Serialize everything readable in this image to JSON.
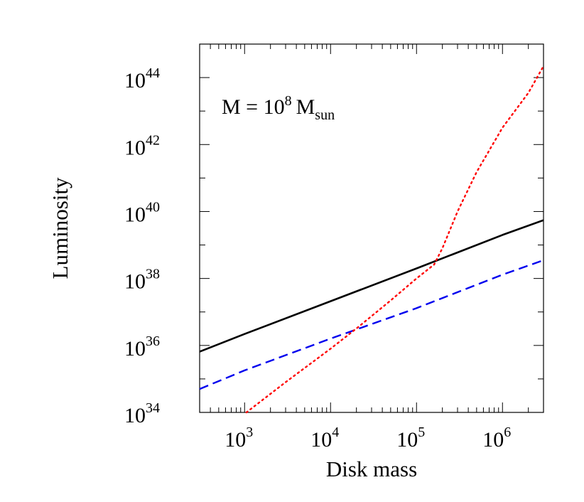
{
  "chart_data": {
    "type": "line",
    "title": "",
    "xlabel": "Disk mass",
    "ylabel": "Luminosity",
    "x_scale": "log",
    "y_scale": "log",
    "xlim": [
      300,
      3000000
    ],
    "ylim": [
      1e+34,
      1e+45
    ],
    "x_ticks": [
      {
        "base": "10",
        "exp": "3",
        "value": 1000
      },
      {
        "base": "10",
        "exp": "4",
        "value": 10000
      },
      {
        "base": "10",
        "exp": "5",
        "value": 100000
      },
      {
        "base": "10",
        "exp": "6",
        "value": 1000000
      }
    ],
    "y_ticks": [
      {
        "base": "10",
        "exp": "34",
        "value": 1e+34
      },
      {
        "base": "10",
        "exp": "36",
        "value": 1e+36
      },
      {
        "base": "10",
        "exp": "38",
        "value": 1e+38
      },
      {
        "base": "10",
        "exp": "40",
        "value": 1e+40
      },
      {
        "base": "10",
        "exp": "42",
        "value": 1e+42
      },
      {
        "base": "10",
        "exp": "44",
        "value": 1e+44
      }
    ],
    "grid": false,
    "annotation": {
      "lhs": "M = 10",
      "exp": "8",
      "unit": "M",
      "sub": "sun"
    },
    "series": [
      {
        "style": "solid",
        "color": "#000000",
        "x": [
          300,
          1000,
          10000,
          100000,
          1000000,
          3000000
        ],
        "y": [
          6.5e+35,
          2.2e+36,
          2.1e+37,
          2e+38,
          2e+39,
          5.5e+39
        ]
      },
      {
        "style": "dashed",
        "color": "#0000ee",
        "x": [
          300,
          1000,
          10000,
          100000,
          1000000,
          3000000
        ],
        "y": [
          5e+34,
          1.8e+35,
          1.6e+36,
          1.3e+37,
          1.3e+38,
          3.5e+38
        ]
      },
      {
        "style": "dotted",
        "color": "#ff0000",
        "x": [
          1050,
          3000,
          10000,
          20000,
          50000,
          100000,
          160000,
          200000,
          300000,
          500000,
          1000000,
          2000000,
          3000000
        ],
        "y": [
          1e+34,
          8e+34,
          8e+35,
          3.2e+36,
          2.2e+37,
          1e+38,
          2.6e+38,
          8e+38,
          1e+40,
          1.5e+41,
          3.2e+42,
          3.5e+43,
          2.2e+44
        ]
      }
    ]
  }
}
